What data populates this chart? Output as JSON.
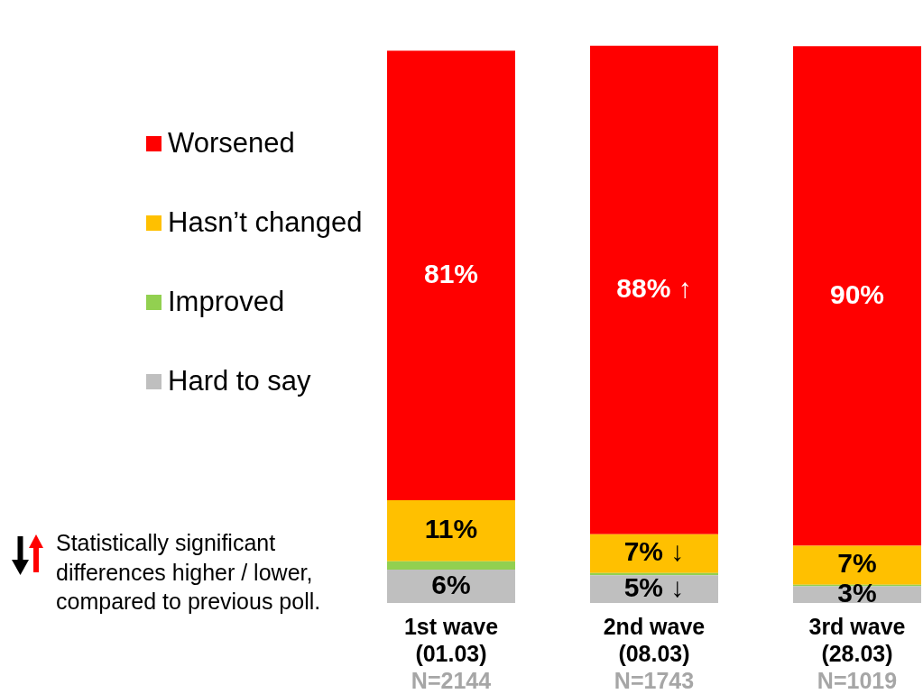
{
  "chart_data": {
    "type": "bar",
    "stacked": true,
    "categories": [
      "1st wave\n(01.03)\nN=2144",
      "2nd wave\n(08.03)\nN=1743",
      "3rd wave\n(28.03)\nN=1019"
    ],
    "series": [
      {
        "name": "Hard to say",
        "color": "#bfbfbf",
        "values": [
          6,
          5,
          3
        ],
        "value_labels": [
          "6%",
          "5% ↓",
          "3%"
        ]
      },
      {
        "name": "Improved",
        "color": "#92d050",
        "values": [
          1.5,
          0.4,
          0.3
        ]
      },
      {
        "name": "Hasn’t changed",
        "color": "#ffc000",
        "values": [
          11,
          7,
          7
        ],
        "value_labels": [
          "11%",
          "7% ↓",
          "7%"
        ]
      },
      {
        "name": "Worsened",
        "color": "#ff0000",
        "values": [
          81,
          88,
          90
        ],
        "value_labels": [
          "81%",
          "88% ↑",
          "90%"
        ]
      }
    ],
    "ylim": [
      0,
      101
    ],
    "tick_labels": "x",
    "legend": "left",
    "annotations": [
      "Statistically significant differences higher / lower, compared to previous poll."
    ]
  }
}
